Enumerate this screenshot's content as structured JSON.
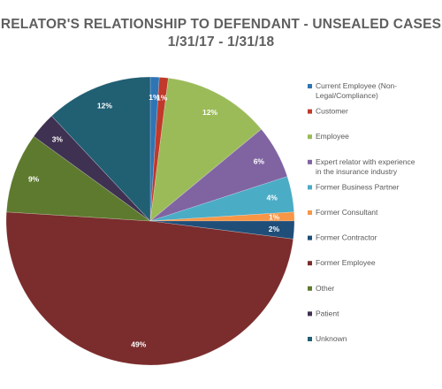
{
  "chart_data": {
    "type": "pie",
    "title": "RELATOR'S RELATIONSHIP TO DEFENDANT - UNSEALED CASES",
    "subtitle": "1/31/17 - 1/31/18",
    "legend_position": "right",
    "series": [
      {
        "name": "Current Employee (Non-Legal/Compliance)",
        "value": 1,
        "label": "1%",
        "color": "#2f75b5"
      },
      {
        "name": "Customer",
        "value": 1,
        "label": "1%",
        "color": "#c0392b"
      },
      {
        "name": "Employee",
        "value": 12,
        "label": "12%",
        "color": "#9bbb59"
      },
      {
        "name": "Expert relator with experience in the insurance industry",
        "value": 6,
        "label": "6%",
        "color": "#8064a2"
      },
      {
        "name": "Former Business Partner",
        "value": 4,
        "label": "4%",
        "color": "#4bacc6"
      },
      {
        "name": "Former Consultant",
        "value": 1,
        "label": "1%",
        "color": "#f79646"
      },
      {
        "name": "Former Contractor",
        "value": 2,
        "label": "2%",
        "color": "#1f4e79"
      },
      {
        "name": "Former Employee",
        "value": 49,
        "label": "49%",
        "color": "#7b2c2c"
      },
      {
        "name": "Other",
        "value": 9,
        "label": "9%",
        "color": "#5e7a2e"
      },
      {
        "name": "Patient",
        "value": 3,
        "label": "3%",
        "color": "#3f3151"
      },
      {
        "name": "Unknown",
        "value": 12,
        "label": "12%",
        "color": "#215f73"
      }
    ]
  }
}
